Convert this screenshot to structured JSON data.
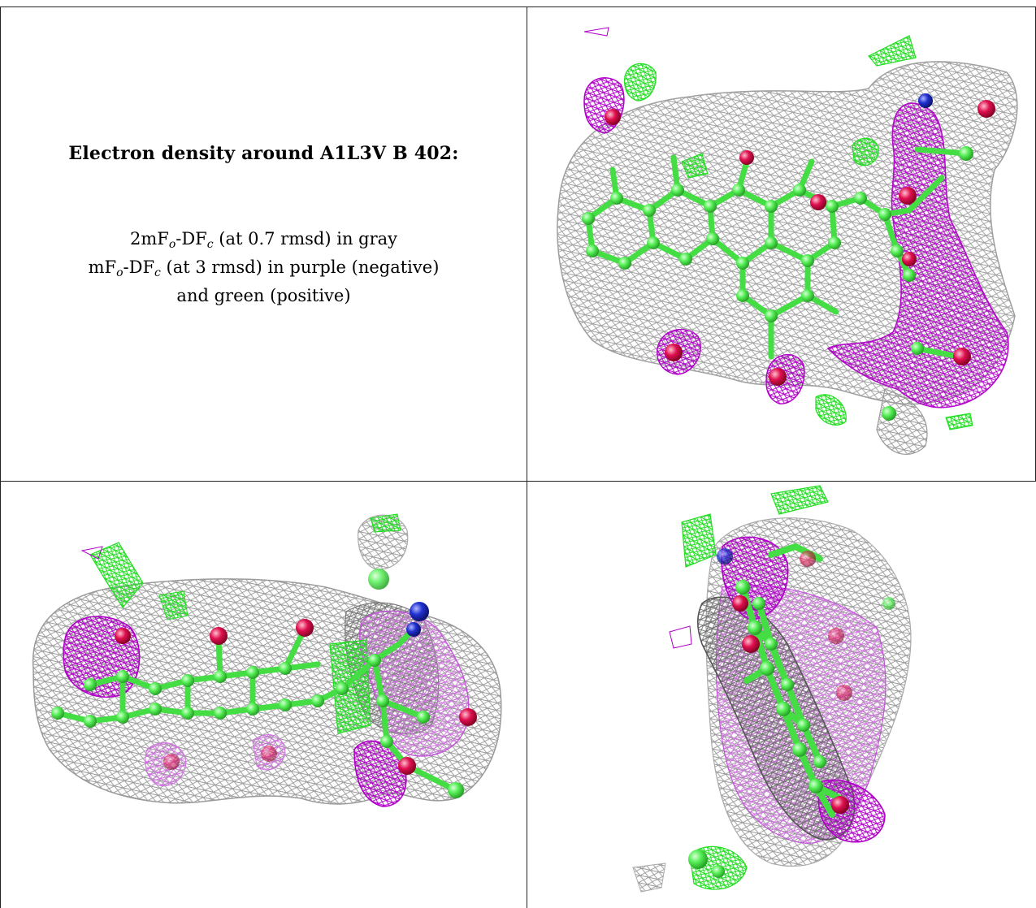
{
  "heading": "Electron density around A1L3V B 402:",
  "legend": {
    "line1": {
      "a": "2mF",
      "a_sub": "o",
      "b": "-DF",
      "b_sub": "c",
      "rest": " (at 0.7 rmsd) in gray"
    },
    "line2": {
      "a": "mF",
      "a_sub": "o",
      "b": "-DF",
      "b_sub": "c",
      "rest": " (at 3 rmsd) in purple (negative)"
    },
    "line3": "and green (positive)"
  },
  "panels": [
    {
      "name": "density-view-top-right",
      "view": "face-on"
    },
    {
      "name": "density-view-bottom-left",
      "view": "side"
    },
    {
      "name": "density-view-bottom-right",
      "view": "edge-on"
    }
  ],
  "colors": {
    "map_2fofc": "#9a9a9a",
    "map_fofc_negative": "#b000c8",
    "map_fofc_positive": "#33ee33",
    "carbon": "#55ee55",
    "oxygen": "#e01050",
    "nitrogen": "#2030d0",
    "border": "#222222"
  }
}
